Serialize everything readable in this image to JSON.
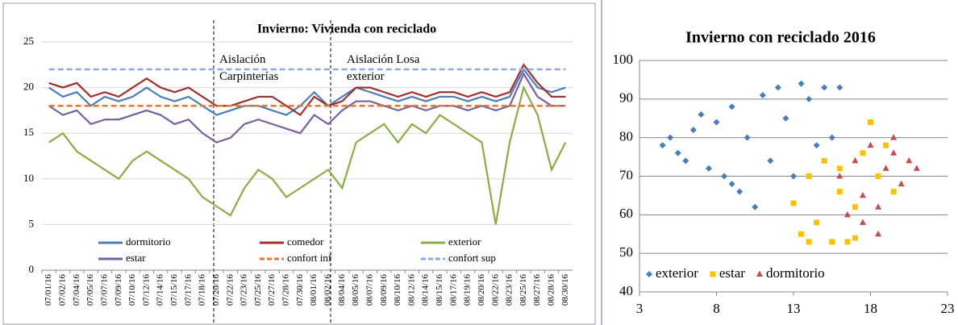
{
  "chart_data": [
    {
      "type": "line",
      "title": "Invierno: Vivienda  con reciclado",
      "categories": [
        "07/01/16",
        "07/02/16",
        "07/04/16",
        "07/05/16",
        "07/07/16",
        "07/09/16",
        "07/10/16",
        "07/12/16",
        "07/14/16",
        "07/15/16",
        "07/17/16",
        "07/18/16",
        "07/20/16",
        "07/22/16",
        "07/23/16",
        "07/25/16",
        "07/27/16",
        "07/28/16",
        "07/30/16",
        "08/01/16",
        "08/02/16",
        "08/04/16",
        "08/05/16",
        "08/07/16",
        "08/09/16",
        "08/10/16",
        "08/12/16",
        "08/14/16",
        "08/15/16",
        "08/17/16",
        "08/19/16",
        "08/20/16",
        "08/22/16",
        "08/23/16",
        "08/25/16",
        "08/27/16",
        "08/28/16",
        "08/30/16"
      ],
      "series": [
        {
          "name": "dormitorio",
          "color": "#4a7ebb",
          "dashed": false,
          "values": [
            20,
            19,
            19.5,
            18,
            19,
            18.5,
            19,
            20,
            19,
            18.5,
            19,
            18,
            17,
            17.5,
            18,
            18,
            17.5,
            17,
            18,
            19.5,
            18,
            19,
            20,
            19.5,
            19,
            18.5,
            19,
            18.5,
            19,
            19,
            18.5,
            19,
            18.5,
            19,
            22,
            20,
            19.5,
            20
          ]
        },
        {
          "name": "comedor",
          "color": "#a0302e",
          "dashed": false,
          "values": [
            20.5,
            20,
            20.5,
            19,
            19.5,
            19,
            20,
            21,
            20,
            19.5,
            20,
            19,
            18,
            18,
            18.5,
            19,
            19,
            18,
            17,
            19,
            18,
            18.5,
            20,
            20,
            19.5,
            19,
            19.5,
            19,
            19.5,
            19.5,
            19,
            19.5,
            19,
            19.5,
            22.5,
            20.5,
            19,
            19
          ]
        },
        {
          "name": "exterior",
          "color": "#8cac46",
          "dashed": false,
          "values": [
            14,
            15,
            13,
            12,
            11,
            10,
            12,
            13,
            12,
            11,
            10,
            8,
            7,
            6,
            9,
            11,
            10,
            8,
            9,
            10,
            11,
            9,
            14,
            15,
            16,
            14,
            16,
            15,
            17,
            16,
            15,
            14,
            5,
            14,
            20,
            17,
            11,
            14
          ]
        },
        {
          "name": "estar",
          "color": "#7a5fa0",
          "dashed": false,
          "values": [
            18,
            17,
            17.5,
            16,
            16.5,
            16.5,
            17,
            17.5,
            17,
            16,
            16.5,
            15,
            14,
            14.5,
            16,
            16.5,
            16,
            15.5,
            15,
            17,
            16,
            17.5,
            18.5,
            18.5,
            18,
            17.5,
            18,
            17.5,
            18,
            18,
            17.5,
            18,
            17.5,
            18,
            21.5,
            19,
            18,
            18
          ]
        },
        {
          "name": "confort inf",
          "color": "#e07b30",
          "dashed": true,
          "values": [
            18,
            18,
            18,
            18,
            18,
            18,
            18,
            18,
            18,
            18,
            18,
            18,
            18,
            18,
            18,
            18,
            18,
            18,
            18,
            18,
            18,
            18,
            18,
            18,
            18,
            18,
            18,
            18,
            18,
            18,
            18,
            18,
            18,
            18,
            18,
            18,
            18,
            18
          ]
        },
        {
          "name": "confort sup",
          "color": "#8eaadc",
          "dashed": true,
          "values": [
            22,
            22,
            22,
            22,
            22,
            22,
            22,
            22,
            22,
            22,
            22,
            22,
            22,
            22,
            22,
            22,
            22,
            22,
            22,
            22,
            22,
            22,
            22,
            22,
            22,
            22,
            22,
            22,
            22,
            22,
            22,
            22,
            22,
            22,
            22,
            22,
            22,
            22
          ]
        }
      ],
      "annotations": [
        "Aislación Carpinterías",
        "Aislación Losa exterior"
      ],
      "ylim": [
        0,
        25
      ],
      "yticks": [
        0,
        5,
        10,
        15,
        20,
        25
      ],
      "grid": true,
      "legend": "bottom"
    },
    {
      "type": "scatter",
      "title": "Invierno con reciclado 2016",
      "series": [
        {
          "name": "exterior",
          "color": "#4a7ebb",
          "marker": "diamond",
          "x": [
            4.5,
            5,
            5.5,
            6,
            6.5,
            7,
            7.5,
            8,
            8.5,
            9,
            9.5,
            10,
            10.5,
            11,
            11.5,
            12,
            12.5,
            13,
            13.5,
            14,
            14.5,
            15,
            15.5,
            16,
            9
          ],
          "y": [
            78,
            80,
            76,
            74,
            82,
            86,
            72,
            84,
            70,
            88,
            66,
            80,
            62,
            91,
            74,
            93,
            85,
            70,
            94,
            90,
            78,
            93,
            80,
            93,
            68
          ]
        },
        {
          "name": "estar",
          "color": "#ffc000",
          "marker": "square",
          "x": [
            13,
            13.5,
            14,
            14.5,
            15,
            15.5,
            16,
            16.5,
            17,
            17.5,
            18,
            18.5,
            19,
            19.5,
            14,
            16,
            17
          ],
          "y": [
            63,
            55,
            70,
            58,
            74,
            53,
            66,
            53,
            62,
            76,
            84,
            70,
            78,
            66,
            53,
            72,
            54
          ]
        },
        {
          "name": "dormitorio",
          "color": "#c0504d",
          "marker": "triangle",
          "x": [
            16,
            16.5,
            17,
            17.5,
            18,
            18.5,
            19,
            19.5,
            20,
            20.5,
            21,
            17.5,
            18.5,
            19.5
          ],
          "y": [
            70,
            60,
            74,
            65,
            78,
            55,
            72,
            80,
            68,
            74,
            72,
            58,
            62,
            76
          ]
        }
      ],
      "xlim": [
        3,
        23
      ],
      "xticks": [
        3,
        8,
        13,
        18,
        23
      ],
      "ylim": [
        40,
        100
      ],
      "yticks": [
        40,
        50,
        60,
        70,
        80,
        90,
        100
      ],
      "grid": true,
      "legend": "bottom-left"
    }
  ]
}
